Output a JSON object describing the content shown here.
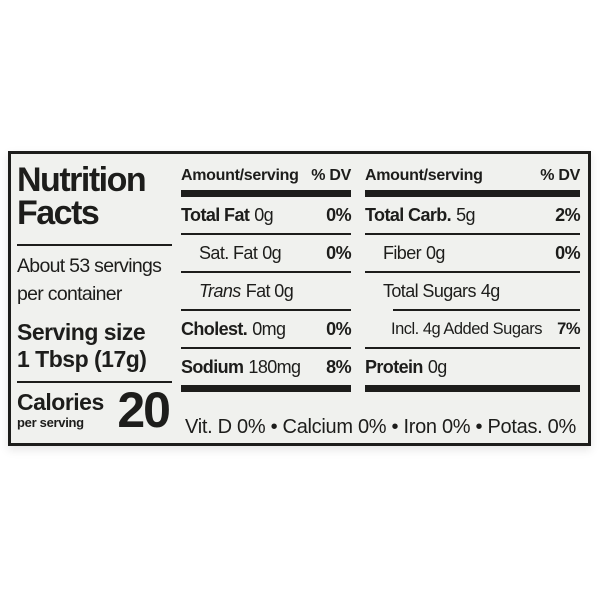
{
  "label": {
    "ink_color": "#1d1d1b",
    "bg_color": "#f0f1ee",
    "title": {
      "line1": "Nutrition",
      "line2": "Facts"
    },
    "servings": {
      "line1": "About 53 servings",
      "line2": "per container"
    },
    "serving_size": {
      "label": "Serving size",
      "value": "1 Tbsp (17g)"
    },
    "calories": {
      "label": "Calories",
      "sublabel": "per serving",
      "value": "20"
    },
    "table": {
      "header": {
        "amount": "Amount/serving",
        "dv": "% DV"
      },
      "fat_column": {
        "rows": [
          {
            "name": "Total Fat",
            "value": "0g",
            "dv": "0%"
          },
          {
            "name": "Sat. Fat",
            "value": "0g",
            "dv": "0%"
          },
          {
            "name": "Trans",
            "value": "Fat 0g",
            "dv": ""
          },
          {
            "name": "Cholest.",
            "value": "0mg",
            "dv": "0%"
          },
          {
            "name": "Sodium",
            "value": "180mg",
            "dv": "8%"
          }
        ]
      },
      "carb_column": {
        "rows": [
          {
            "name": "Total Carb.",
            "value": "5g",
            "dv": "2%"
          },
          {
            "name": "Fiber",
            "value": "0g",
            "dv": "0%"
          },
          {
            "name": "Total Sugars",
            "value": "4g",
            "dv": ""
          },
          {
            "name": "Incl. 4g Added Sugars",
            "value": "",
            "dv": "7%"
          },
          {
            "name": "Protein",
            "value": "0g",
            "dv": ""
          }
        ]
      }
    },
    "micronutrients": {
      "text": "Vit. D 0% • Calcium 0% • Iron 0% • Potas. 0%"
    }
  }
}
